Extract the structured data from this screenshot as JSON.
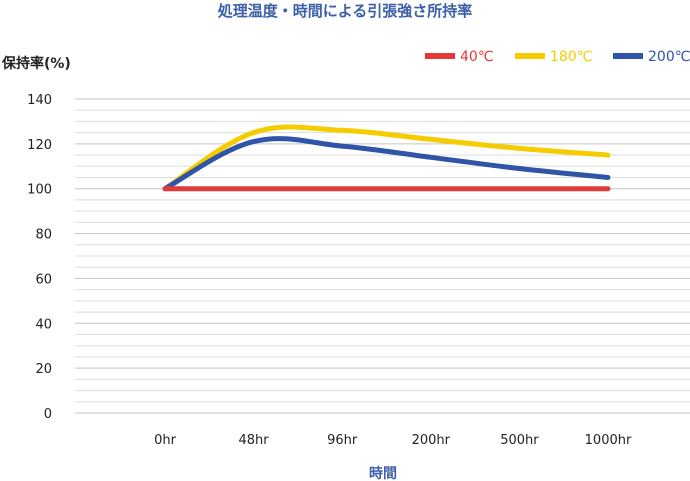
{
  "chart_data": {
    "type": "line",
    "title": "処理温度・時間による引張強さ所持率",
    "ylabel": "保持率(%)",
    "xlabel": "時間",
    "categories": [
      "0hr",
      "48hr",
      "96hr",
      "200hr",
      "500hr",
      "1000hr"
    ],
    "ylim": [
      0,
      140
    ],
    "yticks": [
      0,
      20,
      40,
      60,
      80,
      100,
      120,
      140
    ],
    "grid": true,
    "legend_position": "top-right",
    "series": [
      {
        "name": "40℃",
        "color": "#e03a3a",
        "values": [
          100,
          100,
          100,
          100,
          100,
          100
        ]
      },
      {
        "name": "180℃",
        "color": "#f5cc00",
        "values": [
          100,
          125,
          126,
          122,
          118,
          115
        ]
      },
      {
        "name": "200℃",
        "color": "#2f54a8",
        "values": [
          100,
          121,
          119,
          114,
          109,
          105
        ]
      }
    ]
  },
  "colors": {
    "title": "#3b5fa8",
    "grid": "#c8c8c8",
    "axis_text": "#222222"
  }
}
